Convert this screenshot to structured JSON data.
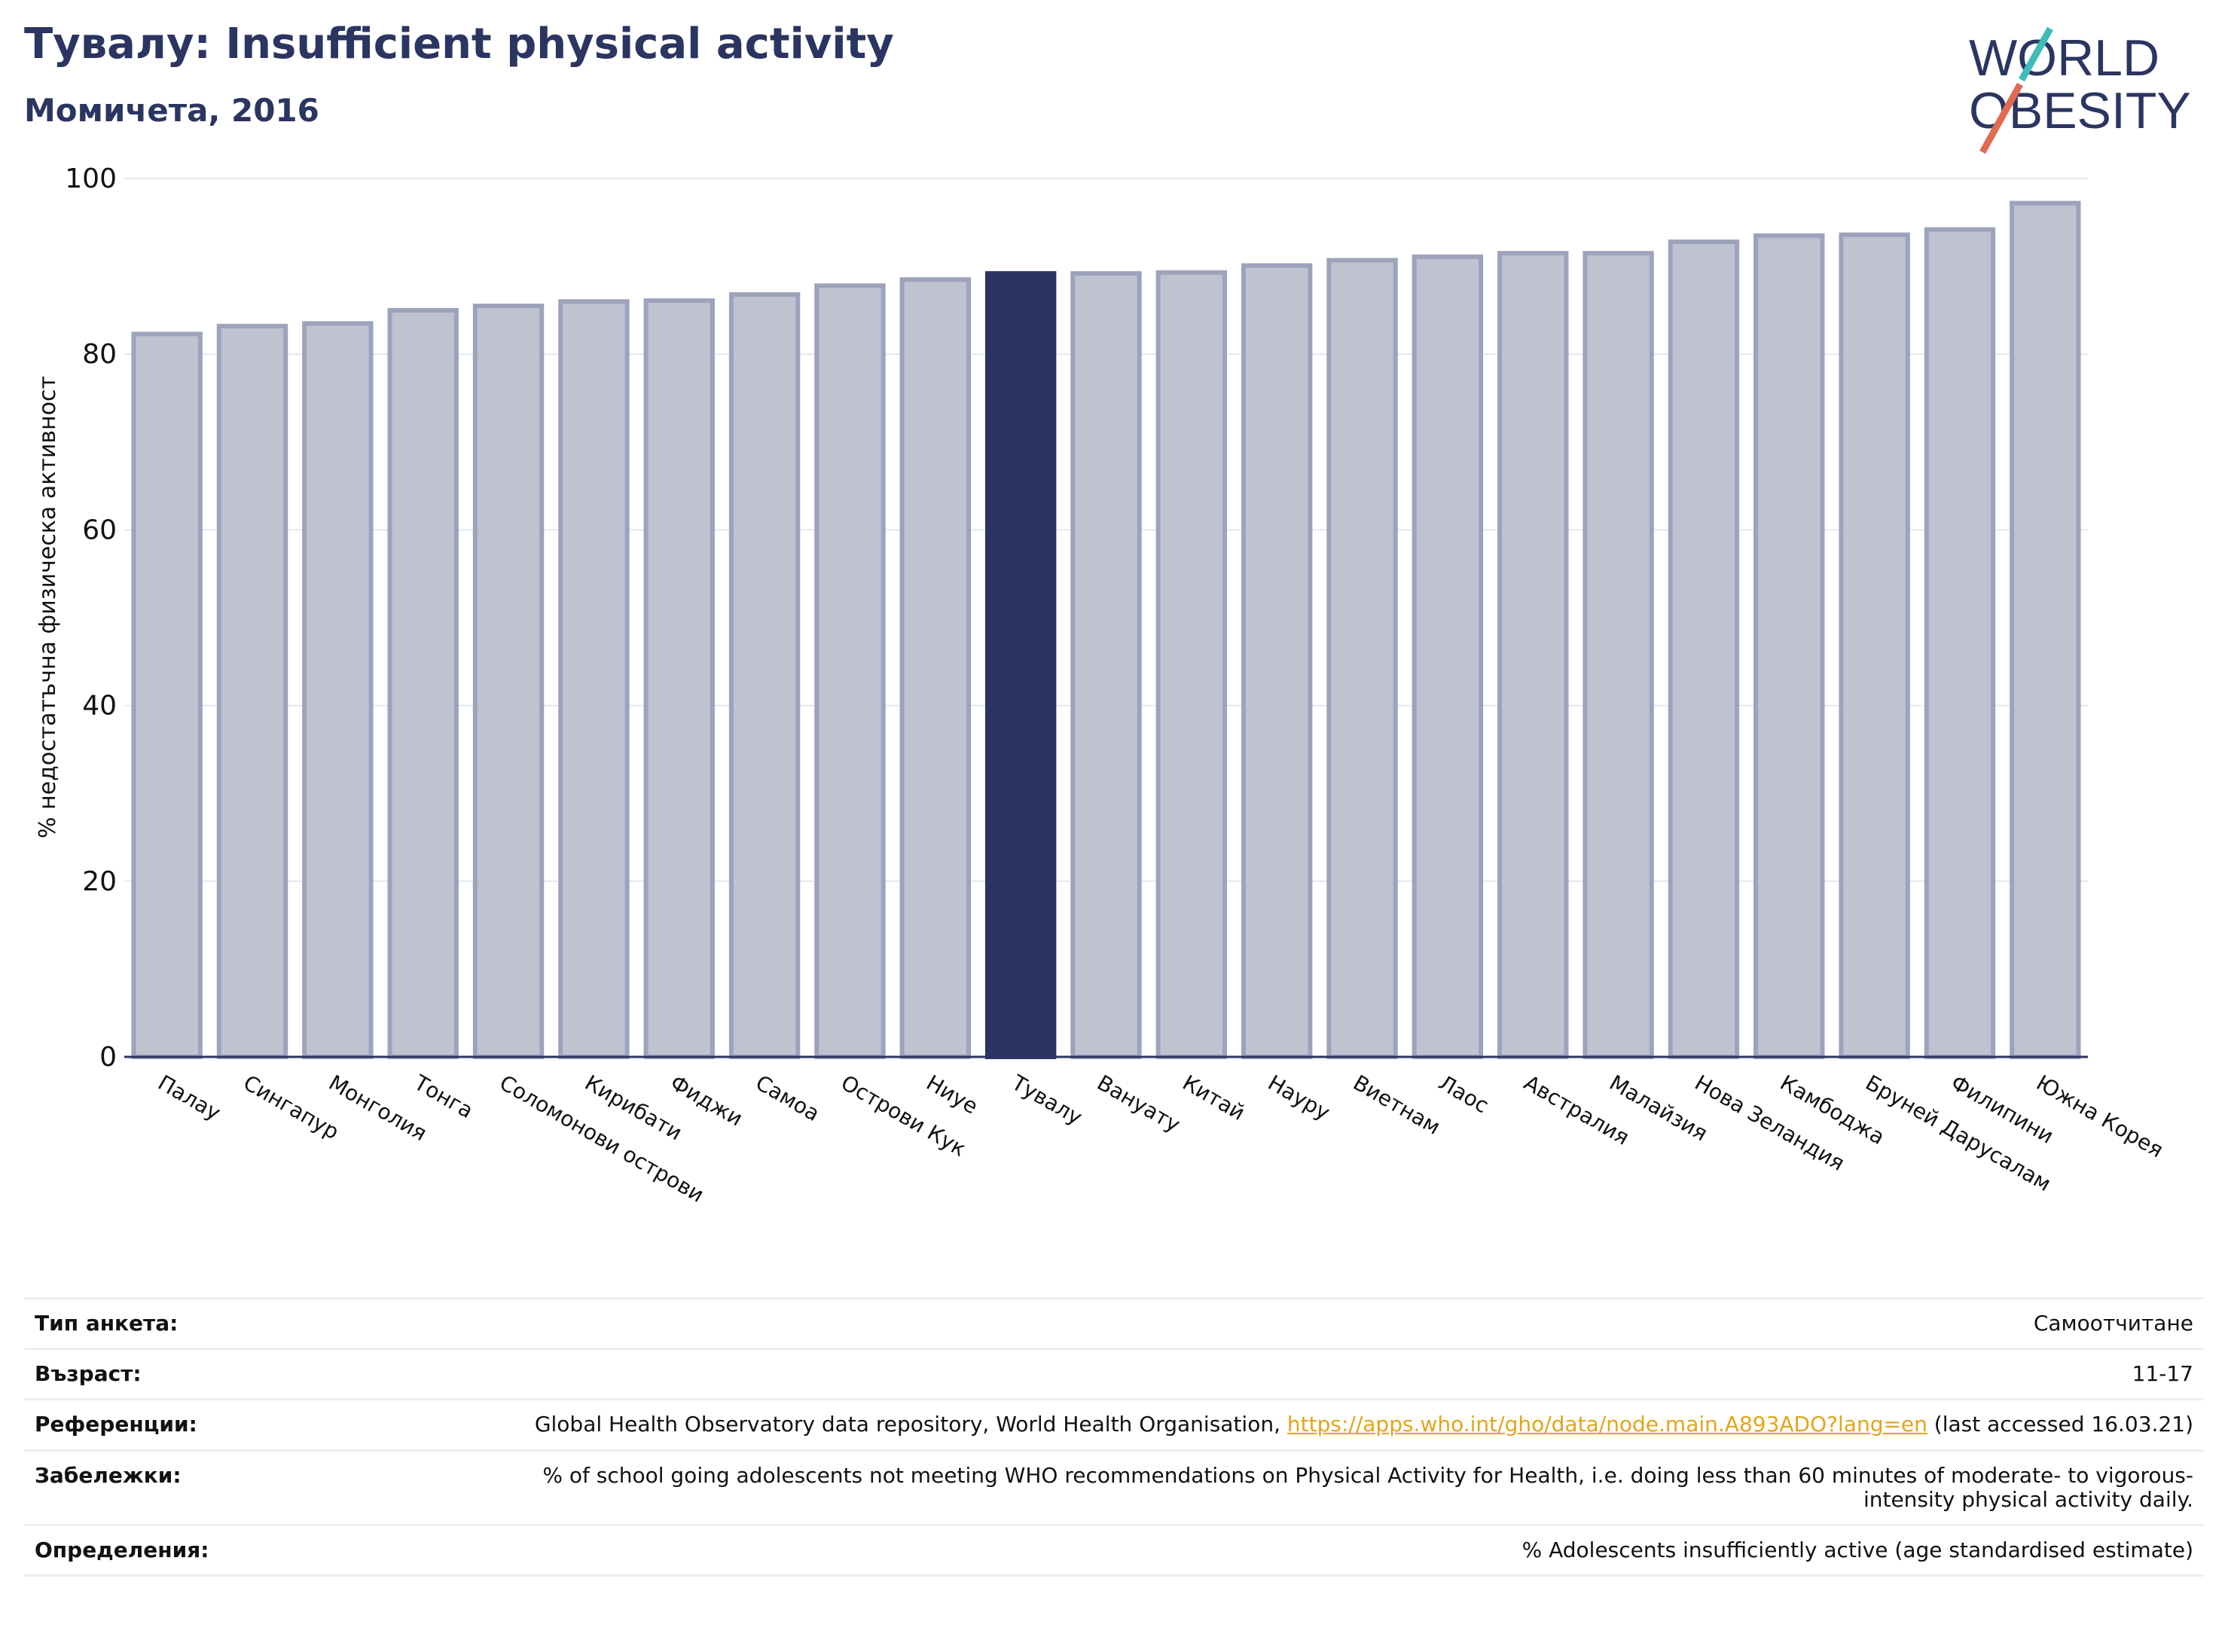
{
  "header": {
    "title": "Тувалу: Insufficient physical activity",
    "subtitle": "Момичета, 2016"
  },
  "logo": {
    "line1": "WORLD",
    "line2": "OBESITY"
  },
  "colors": {
    "highlight": "#2a3561",
    "bar": "#bfc2cf",
    "bar_edge": "#9ea3bc",
    "axis": "#2a3561",
    "grid": "#e4e6ee",
    "link": "#e3a51a",
    "logo_teal": "#3fbcb6",
    "logo_red": "#e06a54"
  },
  "chart_data": {
    "type": "bar",
    "categories": [
      "Палау",
      "Сингапур",
      "Монголия",
      "Тонга",
      "Соломонови острови",
      "Кирибати",
      "Фиджи",
      "Самоа",
      "Острови Кук",
      "Ниуе",
      "Тувалу",
      "Вануату",
      "Китай",
      "Науру",
      "Виетнам",
      "Лаос",
      "Австралия",
      "Малайзия",
      "Нова Зеландия",
      "Камбоджа",
      "Бруней Дарусалам",
      "Филипини",
      "Южна Корея"
    ],
    "values": [
      82.3,
      83.2,
      83.5,
      85.0,
      85.5,
      86.0,
      86.1,
      86.8,
      87.8,
      88.5,
      89.2,
      89.2,
      89.3,
      90.1,
      90.7,
      91.1,
      91.5,
      91.5,
      92.8,
      93.5,
      93.6,
      94.2,
      97.2
    ],
    "highlight": "Тувалу",
    "ylabel": "% недостатъчна физическа активност",
    "xlabel": "",
    "ylim": [
      0,
      100
    ],
    "yticks": [
      0,
      20,
      40,
      60,
      80,
      100
    ],
    "grid": true
  },
  "info": {
    "survey_type": {
      "label": "Тип анкета:",
      "value": "Самоотчитане"
    },
    "age": {
      "label": "Възраст:",
      "value": "11-17"
    },
    "references": {
      "label": "Референции:",
      "text_before": "Global Health Observatory data repository, World Health Organisation, ",
      "link": "https://apps.who.int/gho/data/node.main.A893ADO?lang=en",
      "text_after": " (last accessed 16.03.21)"
    },
    "notes": {
      "label": "Забележки:",
      "value": "% of school going adolescents not meeting WHO recommendations on Physical Activity for Health, i.e. doing less than 60 minutes of moderate- to vigorous-intensity physical activity daily."
    },
    "definitions": {
      "label": "Определения:",
      "value": "% Adolescents insufficiently active (age standardised estimate)"
    }
  }
}
